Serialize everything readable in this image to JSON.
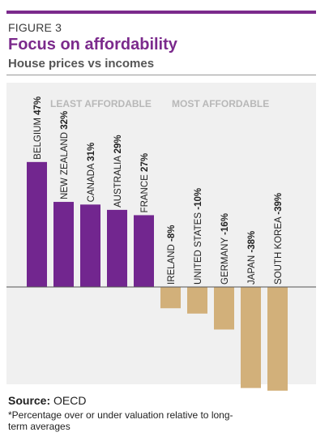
{
  "figure_label": "FIGURE 3",
  "title": "Focus on affordability",
  "subtitle": "House prices vs incomes",
  "source_label": "Source:",
  "source_text": "OECD",
  "footnote": "*Percentage over or under valuation relative to long-term averages",
  "colors": {
    "accent": "#7b2a8c",
    "positive": "#72268f",
    "negative": "#d2b07a"
  },
  "chart_data": {
    "type": "bar",
    "group_labels": [
      "LEAST AFFORDABLE",
      "MOST AFFORDABLE"
    ],
    "categories": [
      "BELGIUM",
      "NEW ZEALAND",
      "CANADA",
      "AUSTRALIA",
      "FRANCE",
      "IRELAND",
      "UNITED STATES",
      "GERMANY",
      "JAPAN",
      "SOUTH KOREA"
    ],
    "values": [
      47,
      32,
      31,
      29,
      27,
      -8,
      -10,
      -16,
      -38,
      -39
    ],
    "value_labels": [
      "47%",
      "32%",
      "31%",
      "29%",
      "27%",
      "-8%",
      "-10%",
      "-16%",
      "-38%",
      "-39%"
    ],
    "unit": "%"
  }
}
